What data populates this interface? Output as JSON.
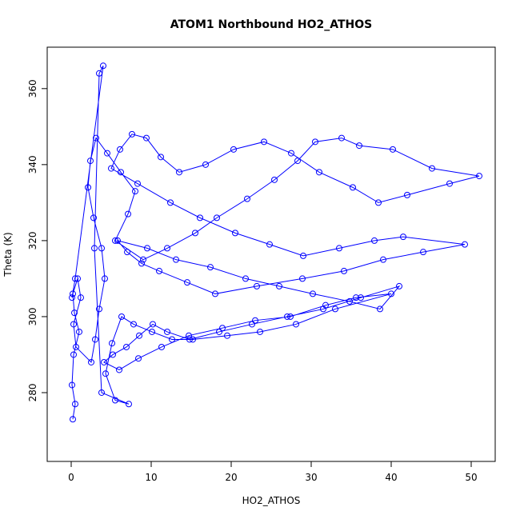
{
  "chart_data": {
    "type": "line",
    "markers": "open-circle",
    "title": "ATOM1 Northbound HO2_ATHOS",
    "x_label": "HO2_ATHOS",
    "y_label": "Theta (K)",
    "color": "#0000ff",
    "x": [
      0.2,
      0.5,
      0.1,
      0.3,
      1.0,
      0.4,
      0.2,
      0.8,
      1.2,
      0.3,
      0.6,
      2.5,
      3.0,
      3.5,
      4.2,
      3.8,
      2.8,
      2.1,
      2.4,
      3.1,
      4.5,
      6.2,
      8.0,
      7.1,
      5.5,
      9.0,
      12.0,
      15.5,
      18.2,
      22.0,
      25.4,
      28.3,
      30.5,
      33.8,
      36.0,
      40.2,
      45.1,
      51.0,
      47.3,
      42.0,
      38.4,
      35.2,
      31.0,
      27.5,
      24.1,
      20.3,
      16.8,
      13.5,
      11.2,
      9.4,
      7.6,
      6.1,
      5.0,
      8.3,
      12.4,
      16.1,
      20.5,
      24.8,
      29.0,
      33.5,
      37.9,
      41.5,
      49.2,
      44.0,
      39.0,
      34.1,
      28.9,
      23.2,
      18.0,
      14.5,
      11.0,
      8.8,
      7.0,
      5.8,
      9.5,
      13.1,
      17.4,
      21.8,
      26.0,
      30.2,
      34.8,
      38.6,
      41.0,
      36.2,
      31.5,
      27.0,
      22.6,
      18.5,
      14.8,
      12.0,
      10.2,
      8.5,
      6.9,
      5.2,
      4.1,
      6.0,
      8.4,
      11.3,
      14.7,
      18.9,
      23.0,
      27.4,
      31.8,
      35.6,
      40.0,
      33.0,
      28.1,
      23.6,
      19.5,
      15.2,
      12.6,
      10.1,
      7.8,
      6.3,
      5.1,
      4.3,
      5.5,
      7.2,
      3.8,
      2.9,
      3.5,
      4.0,
      0.5,
      0.1
    ],
    "values": [
      273,
      277,
      282,
      290,
      296,
      301,
      306,
      310,
      305,
      298,
      292,
      288,
      294,
      302,
      310,
      318,
      326,
      334,
      341,
      347,
      343,
      338,
      333,
      327,
      320,
      315,
      318,
      322,
      326,
      331,
      336,
      341,
      346,
      347,
      345,
      344,
      339,
      337,
      335,
      332,
      330,
      334,
      338,
      343,
      346,
      344,
      340,
      338,
      342,
      347,
      348,
      344,
      339,
      335,
      330,
      326,
      322,
      319,
      316,
      318,
      320,
      321,
      319,
      317,
      315,
      312,
      310,
      308,
      306,
      309,
      312,
      314,
      317,
      320,
      318,
      315,
      313,
      310,
      308,
      306,
      304,
      302,
      308,
      305,
      302,
      300,
      298,
      296,
      294,
      296,
      298,
      295,
      292,
      290,
      288,
      286,
      289,
      292,
      295,
      297,
      299,
      300,
      303,
      305,
      306,
      302,
      298,
      296,
      295,
      294,
      294,
      296,
      298,
      300,
      293,
      285,
      278,
      277,
      280,
      318,
      364,
      366,
      310,
      305
    ],
    "xlim": [
      -3,
      53
    ],
    "ylim": [
      261.9,
      370.9
    ],
    "xticks": [
      0,
      10,
      20,
      30,
      40,
      50
    ],
    "yticks": [
      280,
      300,
      320,
      340,
      360
    ]
  }
}
